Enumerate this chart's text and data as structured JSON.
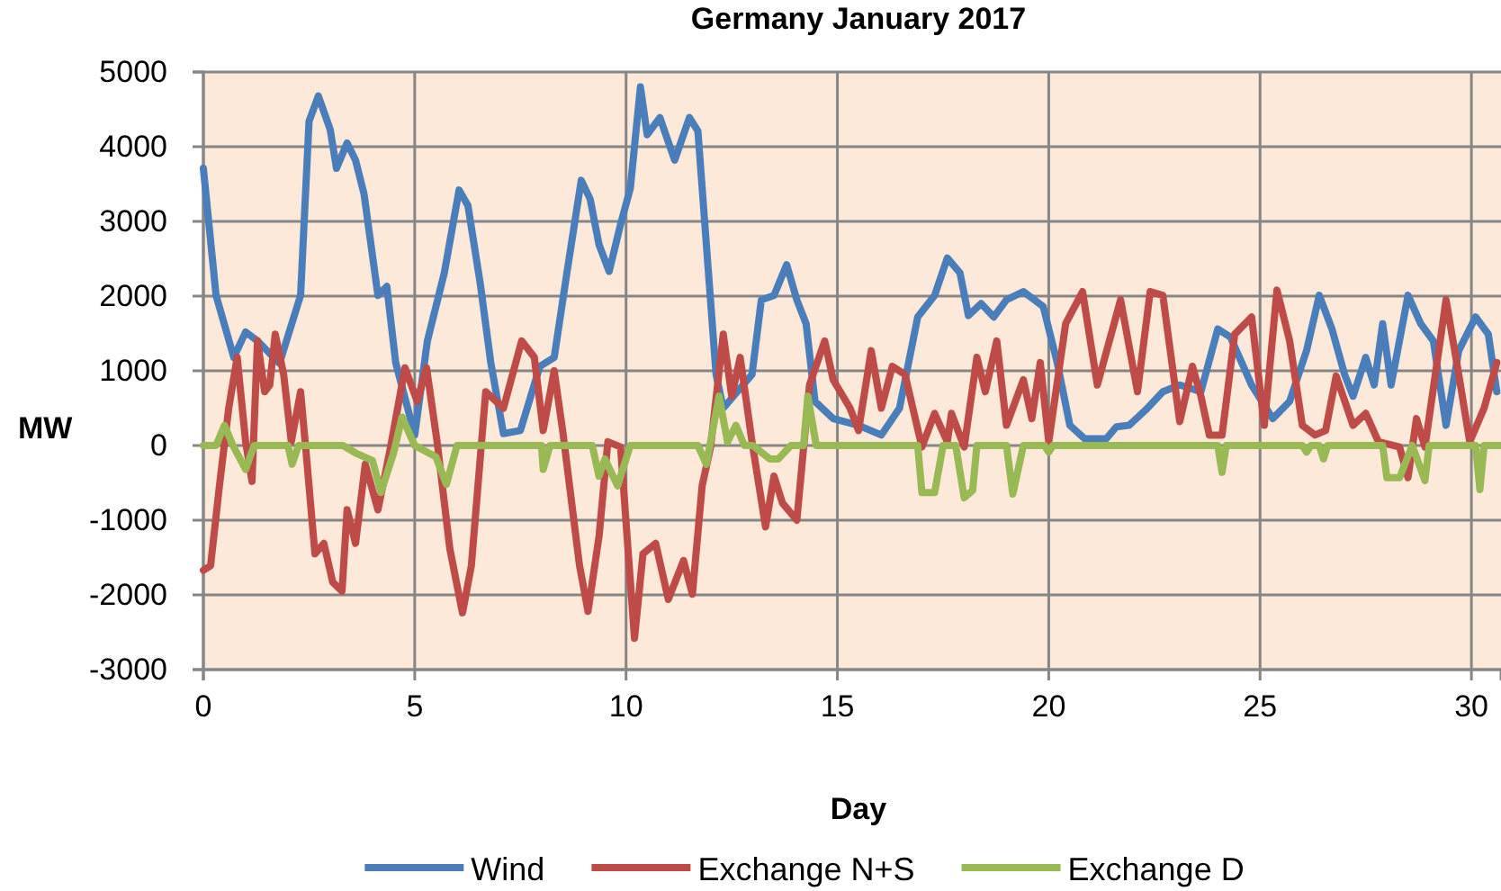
{
  "chart_data": {
    "type": "line",
    "title": "Germany January 2017",
    "xlabel": "Day",
    "ylabel": "MW",
    "xlim": [
      0,
      30.7
    ],
    "xticks": [
      0,
      5,
      10,
      15,
      20,
      25,
      30
    ],
    "ylim": [
      -3000,
      5000
    ],
    "yticks": [
      -3000,
      -2000,
      -1000,
      0,
      1000,
      2000,
      3000,
      4000,
      5000
    ],
    "grid": true,
    "legend": "bottom",
    "marker": "none",
    "line_style": "solid",
    "series": [
      {
        "name": "Wind",
        "color": "#4a7ebb",
        "x": [
          0,
          0.3,
          0.72,
          1.0,
          1.28,
          1.8,
          2.3,
          2.5,
          2.72,
          3.0,
          3.15,
          3.4,
          3.6,
          3.8,
          4.13,
          4.34,
          4.55,
          5.0,
          5.3,
          5.7,
          6.05,
          6.26,
          6.55,
          6.8,
          7.1,
          7.5,
          7.96,
          8.3,
          8.6,
          8.94,
          9.15,
          9.36,
          9.6,
          9.87,
          10.1,
          10.34,
          10.5,
          10.8,
          11.15,
          11.5,
          11.7,
          11.9,
          12.13,
          12.3,
          12.98,
          13.2,
          13.5,
          13.8,
          14.04,
          14.26,
          14.47,
          14.9,
          15.5,
          16.04,
          16.47,
          16.9,
          17.3,
          17.6,
          17.9,
          18.1,
          18.4,
          18.7,
          19.0,
          19.4,
          19.87,
          20.2,
          20.5,
          20.85,
          21.36,
          21.6,
          21.9,
          22.3,
          22.7,
          23.1,
          23.6,
          24.0,
          24.3,
          24.8,
          25.3,
          25.7,
          26.1,
          26.4,
          26.7,
          27.0,
          27.2,
          27.5,
          27.7,
          27.9,
          28.1,
          28.5,
          28.8,
          29.1,
          29.4,
          29.7,
          30.1,
          30.4,
          30.6
        ],
        "values": [
          3710,
          2010,
          1180,
          1520,
          1400,
          1100,
          2010,
          4340,
          4680,
          4230,
          3710,
          4050,
          3820,
          3370,
          2010,
          2130,
          1110,
          140,
          1400,
          2310,
          3420,
          3210,
          2170,
          1110,
          160,
          200,
          1060,
          1180,
          2310,
          3550,
          3300,
          2690,
          2330,
          2960,
          3440,
          4800,
          4160,
          4390,
          3820,
          4390,
          4210,
          2690,
          950,
          500,
          950,
          1950,
          2010,
          2420,
          1950,
          1630,
          590,
          360,
          270,
          140,
          500,
          1720,
          2010,
          2510,
          2310,
          1740,
          1900,
          1720,
          1950,
          2060,
          1860,
          1110,
          270,
          90,
          90,
          250,
          270,
          480,
          720,
          810,
          720,
          1560,
          1450,
          810,
          360,
          590,
          1270,
          2010,
          1560,
          950,
          660,
          1180,
          810,
          1630,
          810,
          2010,
          1630,
          1400,
          270,
          1270,
          1720,
          1490,
          720
        ]
      },
      {
        "name": "Exchange N+S",
        "color": "#be4b48",
        "x": [
          0,
          0.17,
          0.38,
          0.6,
          0.8,
          1.0,
          1.15,
          1.28,
          1.45,
          1.57,
          1.7,
          1.9,
          2.08,
          2.3,
          2.43,
          2.64,
          2.85,
          3.06,
          3.28,
          3.4,
          3.6,
          3.83,
          4.13,
          4.43,
          4.77,
          5.06,
          5.28,
          5.53,
          5.83,
          6.13,
          6.34,
          6.68,
          7.1,
          7.53,
          7.83,
          8.04,
          8.3,
          8.5,
          8.9,
          9.1,
          9.36,
          9.57,
          9.87,
          10.2,
          10.4,
          10.7,
          11.0,
          11.36,
          11.57,
          11.8,
          12.0,
          12.3,
          12.5,
          12.7,
          12.98,
          13.3,
          13.5,
          13.7,
          14.04,
          14.34,
          14.7,
          14.9,
          15.3,
          15.5,
          15.8,
          16.04,
          16.3,
          16.6,
          17.0,
          17.3,
          17.6,
          17.7,
          18.0,
          18.3,
          18.5,
          18.77,
          19.0,
          19.4,
          19.6,
          19.8,
          20.0,
          20.4,
          20.8,
          21.15,
          21.7,
          22.1,
          22.4,
          22.7,
          23.1,
          23.4,
          23.6,
          23.8,
          24.1,
          24.4,
          24.8,
          25.1,
          25.4,
          25.7,
          26.0,
          26.3,
          26.55,
          26.8,
          27.2,
          27.5,
          27.8,
          28.3,
          28.5,
          28.7,
          28.9,
          29.4,
          29.7,
          29.96,
          30.3,
          30.6
        ],
        "values": [
          -1670,
          -1610,
          -540,
          500,
          1180,
          50,
          -480,
          1400,
          720,
          810,
          1490,
          950,
          50,
          720,
          -90,
          -1450,
          -1310,
          -1830,
          -1950,
          -860,
          -1310,
          -250,
          -860,
          -20,
          1040,
          590,
          1040,
          50,
          -1380,
          -2240,
          -1610,
          720,
          500,
          1400,
          1180,
          200,
          1000,
          200,
          -1610,
          -2220,
          -1220,
          50,
          -20,
          -2580,
          -1450,
          -1310,
          -2060,
          -1540,
          -1990,
          -540,
          -20,
          1490,
          660,
          1180,
          50,
          -1090,
          -410,
          -770,
          -1000,
          810,
          1400,
          880,
          500,
          200,
          1270,
          500,
          1060,
          950,
          -20,
          430,
          50,
          430,
          -20,
          1180,
          720,
          1400,
          270,
          880,
          360,
          1110,
          50,
          1630,
          2060,
          810,
          1950,
          720,
          2060,
          2010,
          320,
          1060,
          660,
          140,
          140,
          1490,
          1720,
          270,
          2080,
          1400,
          270,
          140,
          200,
          930,
          270,
          430,
          50,
          -20,
          -430,
          360,
          -20,
          1950,
          950,
          50,
          500,
          1110
        ]
      },
      {
        "name": "Exchange D",
        "color": "#98b954",
        "x": [
          0,
          0.3,
          0.5,
          0.7,
          1.0,
          1.2,
          2.0,
          2.1,
          2.25,
          3.3,
          3.6,
          4.0,
          4.2,
          4.5,
          4.7,
          5.0,
          5.5,
          5.75,
          6.0,
          8.0,
          8.04,
          8.2,
          9.2,
          9.36,
          9.5,
          9.8,
          10.1,
          11.7,
          11.9,
          12.2,
          12.4,
          12.6,
          12.8,
          13.0,
          13.4,
          13.6,
          13.9,
          14.2,
          14.3,
          14.5,
          16.9,
          17.0,
          17.3,
          17.5,
          17.8,
          18.0,
          18.2,
          18.3,
          19.0,
          19.15,
          19.4,
          19.9,
          20.0,
          20.1,
          24.0,
          24.1,
          24.2,
          26.0,
          26.1,
          26.2,
          26.4,
          26.5,
          26.6,
          27.9,
          28.0,
          28.3,
          28.6,
          28.9,
          29.0,
          30.1,
          30.2,
          30.3,
          30.7
        ],
        "values": [
          0,
          0,
          270,
          0,
          -320,
          0,
          0,
          -250,
          0,
          0,
          -100,
          -200,
          -630,
          -100,
          380,
          0,
          -150,
          -520,
          0,
          0,
          -320,
          0,
          0,
          -410,
          -180,
          -540,
          0,
          0,
          -250,
          660,
          50,
          270,
          0,
          0,
          -180,
          -180,
          0,
          0,
          660,
          0,
          0,
          -630,
          -630,
          0,
          0,
          -700,
          -600,
          0,
          0,
          -650,
          0,
          0,
          -90,
          0,
          0,
          -360,
          0,
          0,
          -90,
          0,
          0,
          -180,
          0,
          0,
          -430,
          -430,
          0,
          -470,
          0,
          0,
          -590,
          0,
          0
        ]
      }
    ]
  }
}
